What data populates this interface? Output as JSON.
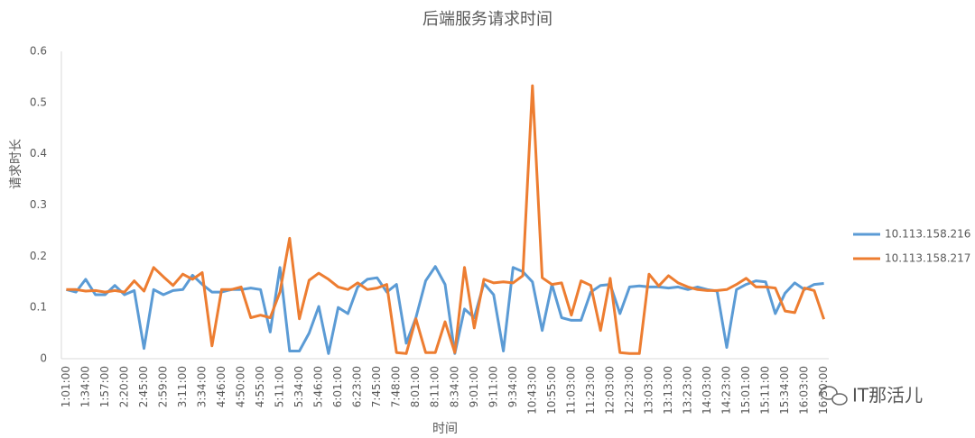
{
  "chart_data": {
    "type": "line",
    "title": "后端服务请求时间",
    "x_label": "时间",
    "y_label": "请求时长",
    "categories": [
      "1:01:00",
      null,
      "1:34:00",
      null,
      "1:57:00",
      null,
      "2:20:00",
      null,
      "2:45:00",
      null,
      "2:59:00",
      null,
      "3:11:00",
      null,
      "3:34:00",
      null,
      "4:46:00",
      null,
      "4:50:00",
      null,
      "4:55:00",
      null,
      "5:11:00",
      null,
      "5:34:00",
      null,
      "5:46:00",
      null,
      "6:01:00",
      null,
      "6:23:00",
      null,
      "7:45:00",
      null,
      "7:48:00",
      null,
      "8:01:00",
      null,
      "8:11:00",
      null,
      "8:34:00",
      null,
      "9:01:00",
      null,
      "9:11:00",
      null,
      "9:34:00",
      null,
      "10:43:00",
      null,
      "10:55:00",
      null,
      "11:03:00",
      null,
      "11:23:00",
      null,
      "12:03:00",
      null,
      "12:23:00",
      null,
      "13:03:00",
      null,
      "13:13:00",
      null,
      "13:23:00",
      null,
      "14:03:00",
      null,
      "14:23:00",
      null,
      "15:01:00",
      null,
      "15:11:00",
      null,
      "15:34:00",
      null,
      "16:03:00",
      null,
      "16:30:00"
    ],
    "series": [
      {
        "name": "10.113.158.216",
        "color": "#5b9bd5",
        "values": [
          0.135,
          0.13,
          0.155,
          0.125,
          0.125,
          0.143,
          0.125,
          0.133,
          0.02,
          0.135,
          0.125,
          0.133,
          0.135,
          0.163,
          0.145,
          0.13,
          0.13,
          0.135,
          0.135,
          0.138,
          0.135,
          0.052,
          0.178,
          0.015,
          0.015,
          0.05,
          0.102,
          0.01,
          0.1,
          0.088,
          0.14,
          0.155,
          0.158,
          0.13,
          0.145,
          0.03,
          0.08,
          0.152,
          0.18,
          0.145,
          0.01,
          0.097,
          0.08,
          0.147,
          0.125,
          0.015,
          0.178,
          0.17,
          0.15,
          0.055,
          0.145,
          0.08,
          0.075,
          0.075,
          0.13,
          0.143,
          0.145,
          0.088,
          0.14,
          0.142,
          0.14,
          0.14,
          0.138,
          0.14,
          0.135,
          0.14,
          0.135,
          0.132,
          0.022,
          0.135,
          0.145,
          0.152,
          0.15,
          0.088,
          0.128,
          0.148,
          0.135,
          0.145,
          0.147
        ]
      },
      {
        "name": "10.113.158.217",
        "color": "#ed7d31",
        "values": [
          0.135,
          0.135,
          0.132,
          0.133,
          0.13,
          0.133,
          0.13,
          0.152,
          0.132,
          0.178,
          0.16,
          0.143,
          0.165,
          0.155,
          0.168,
          0.025,
          0.135,
          0.135,
          0.14,
          0.08,
          0.085,
          0.08,
          0.13,
          0.235,
          0.078,
          0.153,
          0.167,
          0.155,
          0.14,
          0.135,
          0.148,
          0.135,
          0.138,
          0.145,
          0.012,
          0.01,
          0.078,
          0.012,
          0.012,
          0.072,
          0.012,
          0.178,
          0.06,
          0.155,
          0.148,
          0.15,
          0.148,
          0.162,
          0.533,
          0.158,
          0.145,
          0.148,
          0.085,
          0.152,
          0.143,
          0.055,
          0.157,
          0.012,
          0.01,
          0.01,
          0.165,
          0.142,
          0.162,
          0.148,
          0.14,
          0.135,
          0.133,
          0.133,
          0.135,
          0.145,
          0.157,
          0.14,
          0.14,
          0.138,
          0.093,
          0.09,
          0.138,
          0.133,
          0.077
        ]
      }
    ],
    "ylim": [
      0,
      0.6
    ],
    "yticks": [
      0,
      0.1,
      0.2,
      0.3,
      0.4,
      0.5,
      0.6
    ],
    "grid": false,
    "legend": "right"
  },
  "watermark": "IT那活儿"
}
